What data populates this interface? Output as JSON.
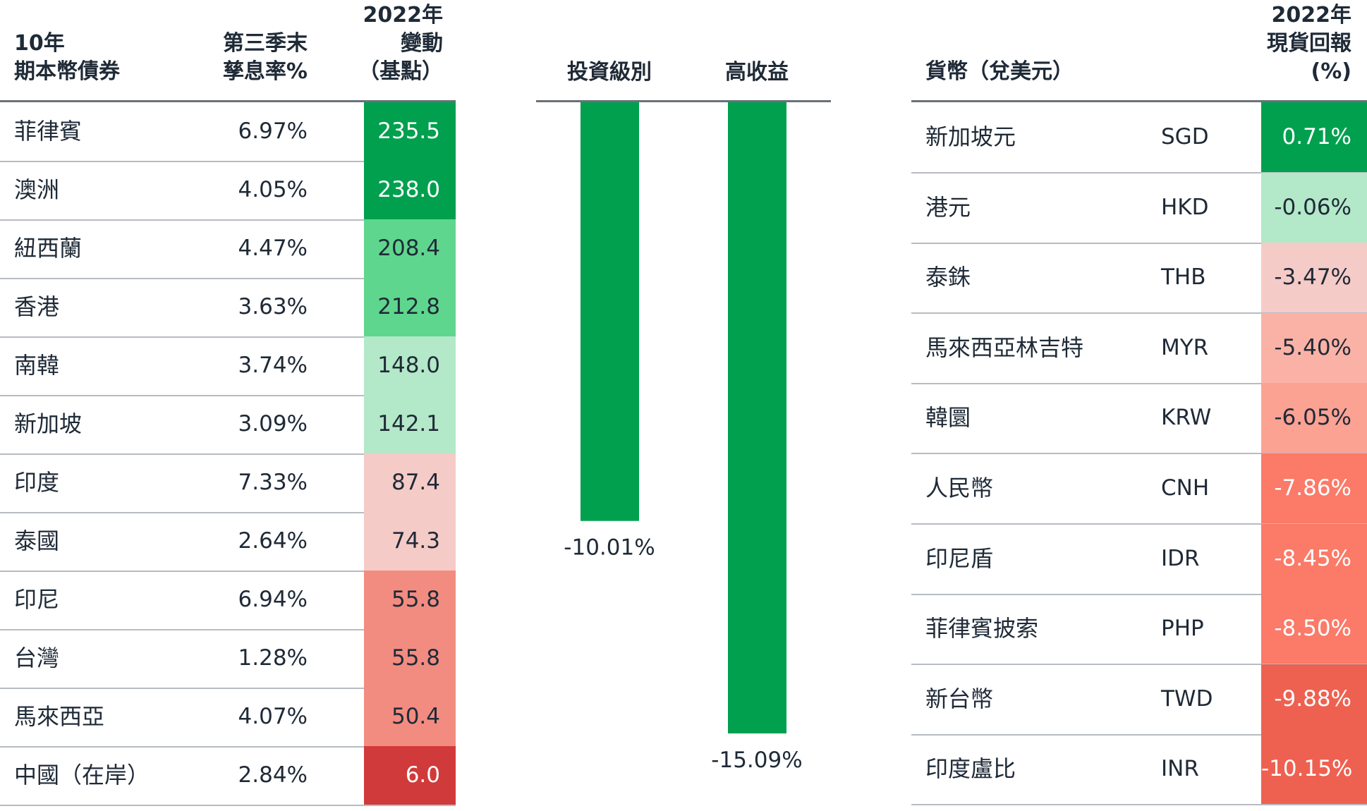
{
  "bonds_table": {
    "col_name_header": [
      "10年",
      "期本幣債券"
    ],
    "col_yield_header": [
      "第三季末",
      "孳息率%"
    ],
    "col_change_header": [
      "2022年",
      "變動",
      "（基點）"
    ],
    "rows": [
      {
        "name": "菲律賓",
        "yield": "6.97%",
        "change": "235.5",
        "bg": "#00a04e",
        "fg": "#ffffff"
      },
      {
        "name": "澳洲",
        "yield": "4.05%",
        "change": "238.0",
        "bg": "#00a04e",
        "fg": "#ffffff"
      },
      {
        "name": "紐西蘭",
        "yield": "4.47%",
        "change": "208.4",
        "bg": "#5fd68e",
        "fg": "#1f2a37"
      },
      {
        "name": "香港",
        "yield": "3.63%",
        "change": "212.8",
        "bg": "#5fd68e",
        "fg": "#1f2a37"
      },
      {
        "name": "南韓",
        "yield": "3.74%",
        "change": "148.0",
        "bg": "#b3e8c8",
        "fg": "#1f2a37"
      },
      {
        "name": "新加坡",
        "yield": "3.09%",
        "change": "142.1",
        "bg": "#b3e8c8",
        "fg": "#1f2a37"
      },
      {
        "name": "印度",
        "yield": "7.33%",
        "change": "87.4",
        "bg": "#f5cbc7",
        "fg": "#1f2a37"
      },
      {
        "name": "泰國",
        "yield": "2.64%",
        "change": "74.3",
        "bg": "#f5cbc7",
        "fg": "#1f2a37"
      },
      {
        "name": "印尼",
        "yield": "6.94%",
        "change": "55.8",
        "bg": "#f28c80",
        "fg": "#1f2a37"
      },
      {
        "name": "台灣",
        "yield": "1.28%",
        "change": "55.8",
        "bg": "#f28c80",
        "fg": "#1f2a37"
      },
      {
        "name": "馬來西亞",
        "yield": "4.07%",
        "change": "50.4",
        "bg": "#f28c80",
        "fg": "#1f2a37"
      },
      {
        "name": "中國（在岸）",
        "yield": "2.84%",
        "change": "6.0",
        "bg": "#d13a3a",
        "fg": "#ffffff"
      }
    ]
  },
  "chart_data": {
    "type": "bar",
    "categories": [
      "投資級別",
      "高收益"
    ],
    "values": [
      -10.01,
      -15.09
    ],
    "value_labels": [
      "-10.01%",
      "-15.09%"
    ],
    "ylim": [
      -15.09,
      0
    ],
    "grid": false,
    "bar_color": "#00a04e"
  },
  "fx_table": {
    "col_name_header": "貨幣（兌美元）",
    "col_return_header": [
      "2022年",
      "現貨回報",
      "(%)"
    ],
    "rows": [
      {
        "name": "新加坡元",
        "code": "SGD",
        "return": "0.71%",
        "bg": "#00a04e",
        "fg": "#ffffff"
      },
      {
        "name": "港元",
        "code": "HKD",
        "return": "-0.06%",
        "bg": "#b3e8c8",
        "fg": "#1f2a37"
      },
      {
        "name": "泰銖",
        "code": "THB",
        "return": "-3.47%",
        "bg": "#f5cbc7",
        "fg": "#1f2a37"
      },
      {
        "name": "馬來西亞林吉特",
        "code": "MYR",
        "return": "-5.40%",
        "bg": "#fbb2a6",
        "fg": "#1f2a37"
      },
      {
        "name": "韓圜",
        "code": "KRW",
        "return": "-6.05%",
        "bg": "#fba293",
        "fg": "#1f2a37"
      },
      {
        "name": "人民幣",
        "code": "CNH",
        "return": "-7.86%",
        "bg": "#fb7a68",
        "fg": "#ffffff"
      },
      {
        "name": "印尼盾",
        "code": "IDR",
        "return": "-8.45%",
        "bg": "#fb7a68",
        "fg": "#ffffff"
      },
      {
        "name": "菲律賓披索",
        "code": "PHP",
        "return": "-8.50%",
        "bg": "#fb7a68",
        "fg": "#ffffff"
      },
      {
        "name": "新台幣",
        "code": "TWD",
        "return": "-9.88%",
        "bg": "#ee6150",
        "fg": "#ffffff"
      },
      {
        "name": "印度盧比",
        "code": "INR",
        "return": "-10.15%",
        "bg": "#ee6150",
        "fg": "#ffffff"
      }
    ]
  }
}
